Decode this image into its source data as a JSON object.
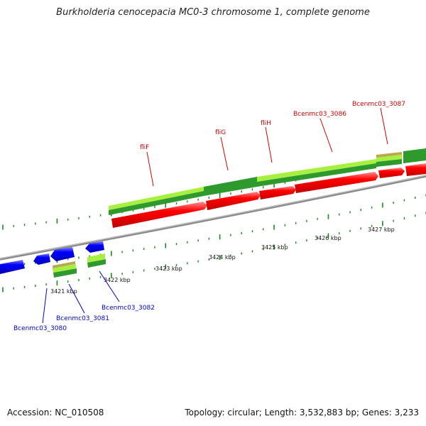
{
  "title": "Burkholderia cenocepacia MC0-3 chromosome 1, complete genome",
  "footer": {
    "accession": "Accession: NC_010508",
    "summary": "Topology: circular; Length: 3,532,883 bp; Genes: 3,233"
  },
  "colors": {
    "forward_gene": "#ff0000",
    "reverse_gene": "#0000ff",
    "backbone": "#8a8a8a",
    "orf_light": "#a8f040",
    "orf_dark": "#2e9a2e",
    "orf_tan": "#b8a850",
    "tick": "#1a8a1a"
  },
  "kbp_labels": [
    "3421 kbp",
    "3422 kbp",
    "3423 kbp",
    "3424 kbp",
    "3425 kbp",
    "3426 kbp",
    "3427 kbp"
  ],
  "forward_gene_labels": [
    "fliF",
    "fliG",
    "fliH",
    "Bcenmc03_3086",
    "Bcenmc03_3087"
  ],
  "reverse_gene_labels": [
    "Bcenmc03_3080",
    "Bcenmc03_3081",
    "Bcenmc03_3082"
  ]
}
